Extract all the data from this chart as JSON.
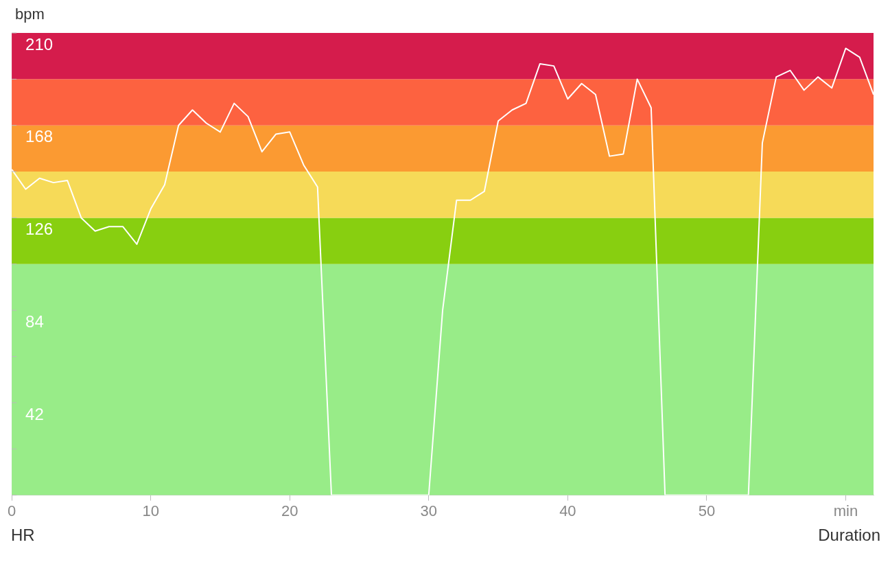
{
  "chart_data": {
    "type": "line",
    "ylabel": "bpm",
    "xlabel": "Duration",
    "annotations": [
      "HR"
    ],
    "x": [
      0,
      1,
      2,
      3,
      4,
      5,
      6,
      7,
      8,
      9,
      10,
      11,
      12,
      13,
      14,
      15,
      16,
      17,
      18,
      19,
      20,
      21,
      22,
      23,
      24,
      25,
      26,
      27,
      28,
      29,
      30,
      31,
      32,
      33,
      34,
      35,
      36,
      37,
      38,
      39,
      40,
      41,
      42,
      43,
      44,
      45,
      46,
      47,
      48,
      49,
      50,
      51,
      52,
      53,
      54,
      55,
      56,
      57,
      58,
      59,
      60,
      61,
      62
    ],
    "series": [
      {
        "color": "#ffffff",
        "values": [
          148,
          139,
          144,
          142,
          143,
          126,
          120,
          122,
          122,
          114,
          130,
          141,
          168,
          175,
          169,
          165,
          178,
          172,
          156,
          164,
          165,
          150,
          140,
          0,
          0,
          0,
          0,
          0,
          0,
          0,
          0,
          84,
          134,
          134,
          138,
          170,
          175,
          178,
          196,
          195,
          180,
          187,
          182,
          154,
          155,
          189,
          176,
          0,
          0,
          0,
          0,
          0,
          0,
          0,
          160,
          190,
          193,
          184,
          190,
          185,
          203,
          199,
          182
        ]
      }
    ],
    "xlim": [
      0,
      62
    ],
    "xticks": [
      0,
      10,
      20,
      30,
      40,
      50,
      {
        "value": 60,
        "label": "min"
      }
    ],
    "ylim": [
      0,
      210
    ],
    "yticks": [
      {
        "value": 0,
        "label": null
      },
      {
        "value": 21,
        "label": null
      },
      42,
      {
        "value": 63,
        "label": null
      },
      84,
      {
        "value": 105,
        "label": null
      },
      126,
      {
        "value": 147,
        "label": null
      },
      168,
      {
        "value": 189,
        "label": null
      },
      210
    ],
    "bands": [
      {
        "axis": "y",
        "from": 0,
        "to": 105,
        "color": "#98ec88"
      },
      {
        "axis": "y",
        "from": 105,
        "to": 126,
        "color": "#88cf10"
      },
      {
        "axis": "y",
        "from": 126,
        "to": 147,
        "color": "#f6da58"
      },
      {
        "axis": "y",
        "from": 147,
        "to": 168,
        "color": "#fb9a32"
      },
      {
        "axis": "y",
        "from": 168,
        "to": 189,
        "color": "#fd6240"
      },
      {
        "axis": "y",
        "from": 189,
        "to": 210,
        "color": "#d51c4c"
      }
    ],
    "grid": false,
    "legend": false,
    "marker": "none",
    "line_style": "solid"
  }
}
